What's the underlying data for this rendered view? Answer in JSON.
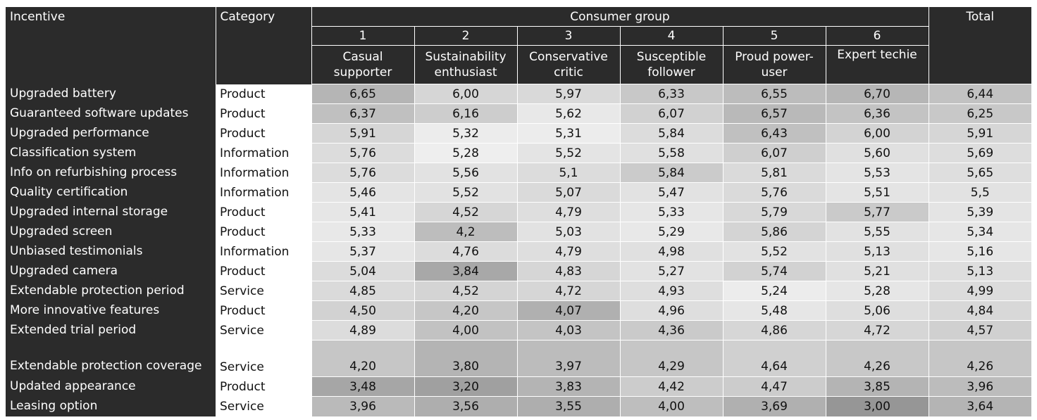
{
  "header": {
    "incentive": "Incentive",
    "category": "Category",
    "consumer_group": "Consumer group",
    "total": "Total",
    "groups": [
      {
        "num": "1",
        "name": "Casual supporter"
      },
      {
        "num": "2",
        "name": "Sustainability enthusiast"
      },
      {
        "num": "3",
        "name": "Conservative critic"
      },
      {
        "num": "4",
        "name": "Susceptible follower"
      },
      {
        "num": "5",
        "name": "Proud power-user"
      },
      {
        "num": "6",
        "name": "Expert techie"
      }
    ]
  },
  "rows": [
    {
      "incentive": "Upgraded battery",
      "category": "Product",
      "values": [
        "6,65",
        "6,00",
        "5,97",
        "6,33",
        "6,55",
        "6,70"
      ],
      "total": "6,44",
      "colors": [
        "#b5b5b5",
        "#d6d6d6",
        "#d9d9d9",
        "#c8c8c8",
        "#bcbcbc",
        "#b6b6b6"
      ],
      "total_color": "#c2c2c2"
    },
    {
      "incentive": "Guaranteed software updates",
      "category": "Product",
      "values": [
        "6,37",
        "6,16",
        "5,62",
        "6,07",
        "6,57",
        "6,36"
      ],
      "total": "6,25",
      "colors": [
        "#c0c0c0",
        "#cdcdcd",
        "#e8e8e8",
        "#d1d1d1",
        "#b9b9b9",
        "#c3c3c3"
      ],
      "total_color": "#c8c8c8"
    },
    {
      "incentive": "Upgraded performance",
      "category": "Product",
      "values": [
        "5,91",
        "5,32",
        "5,31",
        "5,84",
        "6,43",
        "6,00"
      ],
      "total": "5,91",
      "colors": [
        "#d6d6d6",
        "#ececec",
        "#ececec",
        "#dcdcdc",
        "#c0c0c0",
        "#d3d3d3"
      ],
      "total_color": "#d6d6d6"
    },
    {
      "incentive": "Classification system",
      "category": "Information",
      "values": [
        "5,76",
        "5,28",
        "5,52",
        "5,58",
        "6,07",
        "5,60"
      ],
      "total": "5,69",
      "colors": [
        "#dcdcdc",
        "#eeeeee",
        "#e4e4e4",
        "#e0e0e0",
        "#cfcfcf",
        "#e0e0e0"
      ],
      "total_color": "#dddddd"
    },
    {
      "incentive": "Info on refurbishing process",
      "category": "Information",
      "values": [
        "5,76",
        "5,56",
        "5,1",
        "5,84",
        "5,81",
        "5,53"
      ],
      "total": "5,65",
      "colors": [
        "#dcdcdc",
        "#e2e2e2",
        "#dcdcdc",
        "#cbcbcb",
        "#dadada",
        "#e4e4e4"
      ],
      "total_color": "#dedede"
    },
    {
      "incentive": "Quality certification",
      "category": "Information",
      "values": [
        "5,46",
        "5,52",
        "5,07",
        "5,47",
        "5,76",
        "5,51"
      ],
      "total": "5,5",
      "colors": [
        "#e4e4e4",
        "#e2e2e2",
        "#dadada",
        "#e2e2e2",
        "#dadada",
        "#e4e4e4"
      ],
      "total_color": "#e2e2e2"
    },
    {
      "incentive": "Upgraded internal storage",
      "category": "Product",
      "values": [
        "5,41",
        "4,52",
        "4,79",
        "5,33",
        "5,79",
        "5,77"
      ],
      "total": "5,39",
      "colors": [
        "#e6e6e6",
        "#d6d6d6",
        "#dedede",
        "#e6e6e6",
        "#d8d8d8",
        "#cacaca"
      ],
      "total_color": "#e4e4e4"
    },
    {
      "incentive": "Upgraded screen",
      "category": "Product",
      "values": [
        "5,33",
        "4,2",
        "5,03",
        "5,29",
        "5,86",
        "5,55"
      ],
      "total": "5,34",
      "colors": [
        "#e8e8e8",
        "#bdbdbd",
        "#e2e2e2",
        "#e8e8e8",
        "#d4d4d4",
        "#e2e2e2"
      ],
      "total_color": "#e6e6e6"
    },
    {
      "incentive": "Unbiased testimonials",
      "category": "Information",
      "values": [
        "5,37",
        "4,76",
        "4,79",
        "4,98",
        "5,52",
        "5,13"
      ],
      "total": "5,16",
      "colors": [
        "#e6e6e6",
        "#dcdcdc",
        "#dedede",
        "#e0e0e0",
        "#e2e2e2",
        "#e0e0e0"
      ],
      "total_color": "#e6e6e6"
    },
    {
      "incentive": "Upgraded camera",
      "category": "Product",
      "values": [
        "5,04",
        "3,84",
        "4,83",
        "5,27",
        "5,74",
        "5,21"
      ],
      "total": "5,13",
      "colors": [
        "#dcdcdc",
        "#a8a8a8",
        "#d6d6d6",
        "#e2e2e2",
        "#d2d2d2",
        "#e0e0e0"
      ],
      "total_color": "#dedede"
    },
    {
      "incentive": "Extendable protection period",
      "category": "Service",
      "values": [
        "4,85",
        "4,52",
        "4,72",
        "4,93",
        "5,24",
        "5,28"
      ],
      "total": "4,99",
      "colors": [
        "#dadada",
        "#d4d4d4",
        "#d6d6d6",
        "#dedede",
        "#ececec",
        "#e6e6e6"
      ],
      "total_color": "#dcdcdc"
    },
    {
      "incentive": "More innovative features",
      "category": "Product",
      "values": [
        "4,50",
        "4,20",
        "4,07",
        "4,96",
        "5,48",
        "5,06"
      ],
      "total": "4,84",
      "colors": [
        "#d2d2d2",
        "#c6c6c6",
        "#b0b0b0",
        "#dedede",
        "#e6e6e6",
        "#dedede"
      ],
      "total_color": "#d8d8d8"
    },
    {
      "incentive": "Extended trial period",
      "category": "Service",
      "values": [
        "4,89",
        "4,00",
        "4,03",
        "4,36",
        "4,86",
        "4,72"
      ],
      "total": "4,57",
      "colors": [
        "#dcdcdc",
        "#c2c2c2",
        "#c4c4c4",
        "#cacaca",
        "#d6d6d6",
        "#d6d6d6"
      ],
      "total_color": "#d0d0d0"
    },
    {
      "incentive": "Extendable protection coverage",
      "category": "Service",
      "values": [
        "4,20",
        "3,80",
        "3,97",
        "4,29",
        "4,64",
        "4,26"
      ],
      "total": "4,26",
      "colors": [
        "#c6c6c6",
        "#b4b4b4",
        "#bcbcbc",
        "#c6c6c6",
        "#d0d0d0",
        "#c8c8c8"
      ],
      "total_color": "#c6c6c6"
    },
    {
      "incentive": "Updated appearance",
      "category": "Product",
      "values": [
        "3,48",
        "3,20",
        "3,83",
        "4,42",
        "4,47",
        "3,85"
      ],
      "total": "3,96",
      "colors": [
        "#a6a6a6",
        "#a0a0a0",
        "#b4b4b4",
        "#cccccc",
        "#cccccc",
        "#b4b4b4"
      ],
      "total_color": "#bcbcbc"
    },
    {
      "incentive": "Leasing option",
      "category": "Service",
      "values": [
        "3,96",
        "3,56",
        "3,55",
        "4,00",
        "3,69",
        "3,00"
      ],
      "total": "3,64",
      "colors": [
        "#bababa",
        "#aeaeae",
        "#aeaeae",
        "#bebebe",
        "#b0b0b0",
        "#969696"
      ],
      "total_color": "#b4b4b4"
    }
  ]
}
